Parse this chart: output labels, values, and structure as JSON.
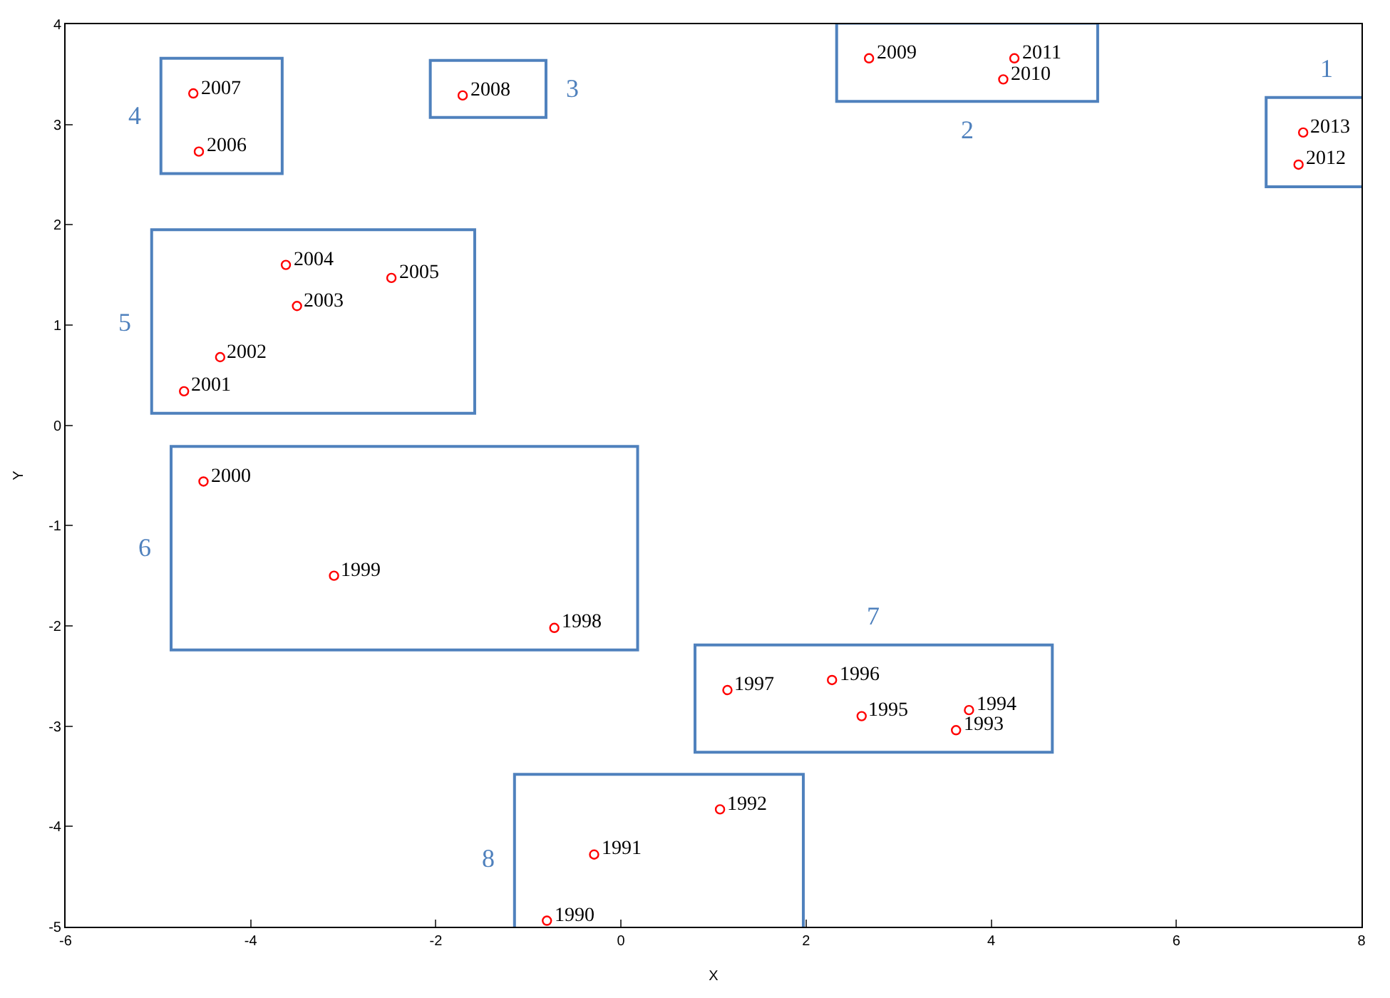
{
  "chart_data": {
    "type": "scatter",
    "xlabel": "X",
    "ylabel": "Y",
    "xlim": [
      -6,
      8
    ],
    "ylim": [
      -5,
      4
    ],
    "xticks": [
      -6,
      -4,
      -2,
      0,
      2,
      4,
      6,
      8
    ],
    "yticks": [
      -5,
      -4,
      -3,
      -2,
      -1,
      0,
      1,
      2,
      3,
      4
    ],
    "marker": "circle",
    "legend": false,
    "series": [
      {
        "color": "#ff0000",
        "x": [
          7.32,
          7.37
        ],
        "values": [
          2.6,
          2.92
        ]
      },
      {
        "color": "#ff0000",
        "x": [
          2.68,
          4.13,
          4.25
        ],
        "values": [
          3.66,
          3.45,
          3.66
        ]
      },
      {
        "color": "#ff0000",
        "x": [
          -1.71
        ],
        "values": [
          3.29
        ]
      },
      {
        "color": "#ff0000",
        "x": [
          -4.56,
          -4.62
        ],
        "values": [
          2.73,
          3.31
        ]
      },
      {
        "color": "#ff0000",
        "x": [
          -4.72,
          -4.33,
          -3.5,
          -3.62,
          -2.48
        ],
        "values": [
          0.34,
          0.68,
          1.19,
          1.6,
          1.47
        ]
      },
      {
        "color": "#ff0000",
        "x": [
          -0.72,
          -3.1,
          -4.51
        ],
        "values": [
          -2.02,
          -1.5,
          -0.56
        ]
      },
      {
        "color": "#ff0000",
        "x": [
          3.62,
          3.76,
          2.6,
          2.28,
          1.15
        ],
        "values": [
          -3.04,
          -2.84,
          -2.9,
          -2.54,
          -2.64
        ]
      },
      {
        "color": "#ff0000",
        "x": [
          -0.8,
          -0.29,
          1.07
        ],
        "values": [
          -4.94,
          -4.28,
          -3.83
        ]
      }
    ],
    "annotations": [
      "1",
      "2",
      "3",
      "4",
      "5",
      "6",
      "7",
      "8",
      {
        "text": "2012",
        "x": 7.32,
        "y": 2.6
      },
      {
        "text": "2013",
        "x": 7.37,
        "y": 2.92
      },
      {
        "text": "2009",
        "x": 2.68,
        "y": 3.66
      },
      {
        "text": "2010",
        "x": 4.13,
        "y": 3.45
      },
      {
        "text": "2011",
        "x": 4.25,
        "y": 3.66
      },
      {
        "text": "2008",
        "x": -1.71,
        "y": 3.29
      },
      {
        "text": "2006",
        "x": -4.56,
        "y": 2.73
      },
      {
        "text": "2007",
        "x": -4.62,
        "y": 3.31
      },
      {
        "text": "2001",
        "x": -4.72,
        "y": 0.34
      },
      {
        "text": "2002",
        "x": -4.33,
        "y": 0.68
      },
      {
        "text": "2003",
        "x": -3.5,
        "y": 1.19
      },
      {
        "text": "2004",
        "x": -3.62,
        "y": 1.6
      },
      {
        "text": "2005",
        "x": -2.48,
        "y": 1.47
      },
      {
        "text": "1998",
        "x": -0.72,
        "y": -2.02
      },
      {
        "text": "1999",
        "x": -3.1,
        "y": -1.5
      },
      {
        "text": "2000",
        "x": -4.51,
        "y": -0.56
      },
      {
        "text": "1993",
        "x": 3.62,
        "y": -3.04
      },
      {
        "text": "1994",
        "x": 3.76,
        "y": -2.84
      },
      {
        "text": "1995",
        "x": 2.6,
        "y": -2.9
      },
      {
        "text": "1996",
        "x": 2.28,
        "y": -2.54
      },
      {
        "text": "1997",
        "x": 1.15,
        "y": -2.64
      },
      {
        "text": "1990",
        "x": -0.8,
        "y": -4.94
      },
      {
        "text": "1991",
        "x": -0.29,
        "y": -4.28
      },
      {
        "text": "1992",
        "x": 1.07,
        "y": -3.83
      }
    ]
  }
}
